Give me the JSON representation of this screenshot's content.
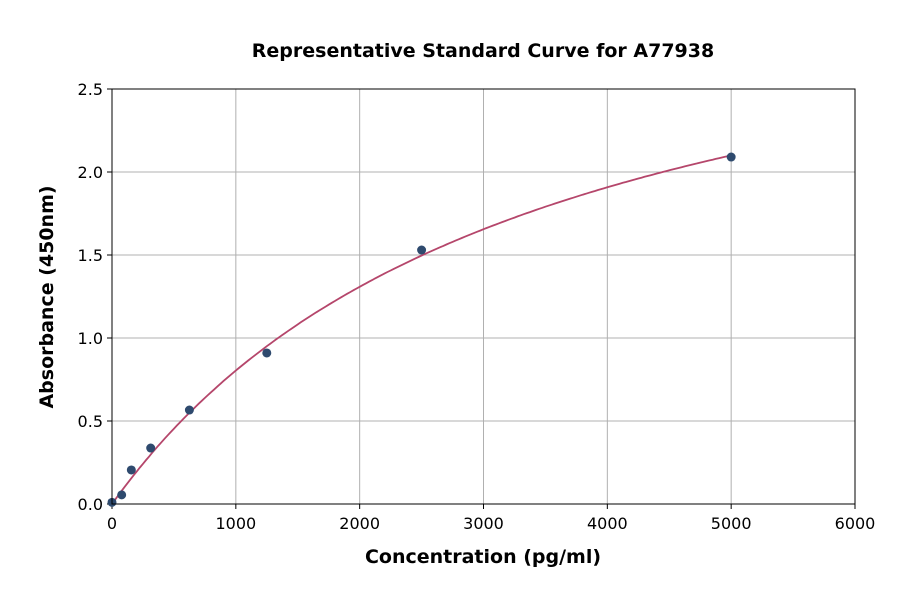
{
  "chart_data": {
    "type": "scatter",
    "title": "Representative Standard Curve for A77938",
    "xlabel": "Concentration (pg/ml)",
    "ylabel": "Absorbance (450nm)",
    "xlim": [
      0,
      6000
    ],
    "ylim": [
      0,
      2.5
    ],
    "xticks": [
      "0",
      "1000",
      "2000",
      "3000",
      "4000",
      "5000",
      "6000"
    ],
    "yticks": [
      "0.0",
      "0.5",
      "1.0",
      "1.5",
      "2.0",
      "2.5"
    ],
    "grid": true,
    "points": [
      {
        "x": 0,
        "y": 0.01
      },
      {
        "x": 78.125,
        "y": 0.055
      },
      {
        "x": 156.25,
        "y": 0.205
      },
      {
        "x": 312.5,
        "y": 0.337
      },
      {
        "x": 625,
        "y": 0.566
      },
      {
        "x": 1250,
        "y": 0.91
      },
      {
        "x": 2500,
        "y": 1.53
      },
      {
        "x": 5000,
        "y": 2.09
      }
    ],
    "point_color": "#2e4a6e",
    "curve_color": "#b5466b"
  }
}
